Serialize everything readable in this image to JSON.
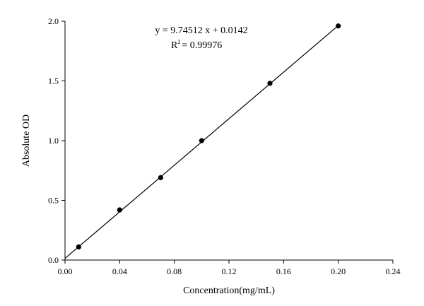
{
  "chart_data": {
    "type": "scatter",
    "title": "",
    "xlabel": "Concentration(mg/mL)",
    "ylabel": "Absolute OD",
    "xlim": [
      0.0,
      0.24
    ],
    "ylim": [
      0.0,
      2.0
    ],
    "x_ticks": [
      0.0,
      0.04,
      0.08,
      0.12,
      0.16,
      0.2,
      0.24
    ],
    "x_tick_labels": [
      "0.00",
      "0.04",
      "0.08",
      "0.12",
      "0.16",
      "0.20",
      "0.24"
    ],
    "y_ticks": [
      0.0,
      0.5,
      1.0,
      1.5,
      2.0
    ],
    "y_tick_labels": [
      "0.0",
      "0.5",
      "1.0",
      "1.5",
      "2.0"
    ],
    "grid": false,
    "series": [
      {
        "x": [
          0.01,
          0.04,
          0.07,
          0.1,
          0.15,
          0.2
        ],
        "y": [
          0.11,
          0.42,
          0.69,
          1.0,
          1.48,
          1.96
        ]
      }
    ],
    "fit": {
      "slope": 9.74512,
      "intercept": 0.0142,
      "x_range": [
        0.0,
        0.2
      ]
    },
    "annotations": {
      "equation": "y = 9.74512 x + 0.0142",
      "r2_prefix": "R",
      "r2_superscript": "2",
      "r2_value": "= 0.99976"
    }
  }
}
